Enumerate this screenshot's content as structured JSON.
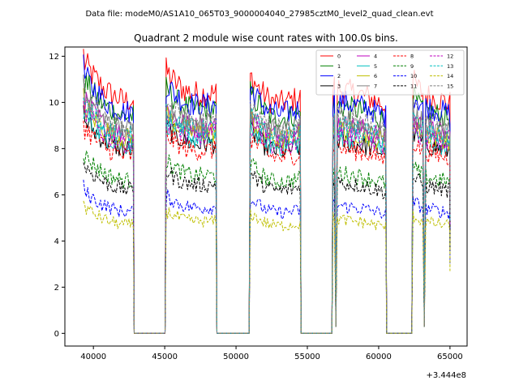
{
  "chart_data": {
    "type": "line",
    "suptitle": "Data file: modeM0/AS1A10_065T03_9000004040_27985cztM0_level2_quad_clean.evt",
    "title": "Quadrant 2 module wise count rates with 100.0s bins.",
    "xlabel": "",
    "ylabel": "",
    "x_offset_label": "+3.444e8",
    "xlim": [
      38000,
      66200
    ],
    "ylim": [
      -0.55,
      12.4
    ],
    "x_ticks": [
      40000,
      45000,
      50000,
      55000,
      60000,
      65000
    ],
    "x_tick_labels": [
      "40000",
      "45000",
      "50000",
      "55000",
      "60000",
      "65000"
    ],
    "y_ticks": [
      0,
      2,
      4,
      6,
      8,
      10,
      12
    ],
    "y_tick_labels": [
      "0",
      "2",
      "4",
      "6",
      "8",
      "10",
      "12"
    ],
    "segments": [
      {
        "start": 39300,
        "end": 42800,
        "trend": [
          1.12,
          1.06,
          1.01,
          0.98,
          0.96,
          0.96
        ]
      },
      {
        "start": 45100,
        "end": 48600,
        "trend": [
          1.08,
          1.03,
          1.0,
          0.99,
          0.99,
          0.99
        ]
      },
      {
        "start": 51000,
        "end": 54500,
        "trend": [
          1.06,
          1.0,
          0.96,
          0.95,
          0.96,
          0.97
        ]
      },
      {
        "start": 56800,
        "end": 60500,
        "trend": [
          1.02,
          1.0,
          0.99,
          0.98,
          0.96,
          0.94
        ]
      },
      {
        "start": 62400,
        "end": 65000,
        "trend": [
          1.04,
          1.0,
          0.98,
          0.97,
          0.96,
          0.95
        ]
      }
    ],
    "gaps": [
      [
        42800,
        45100
      ],
      [
        48600,
        51000
      ],
      [
        54500,
        56800
      ],
      [
        60500,
        62400
      ]
    ],
    "dropouts": [
      57000,
      63200
    ],
    "series": [
      {
        "name": "0",
        "color": "#ff0000",
        "dash": "solid",
        "level": 10.5
      },
      {
        "name": "1",
        "color": "#008000",
        "dash": "solid",
        "level": 9.8
      },
      {
        "name": "2",
        "color": "#0000ff",
        "dash": "solid",
        "level": 10.0
      },
      {
        "name": "3",
        "color": "#000000",
        "dash": "solid",
        "level": 8.3
      },
      {
        "name": "4",
        "color": "#bf00bf",
        "dash": "solid",
        "level": 9.0
      },
      {
        "name": "5",
        "color": "#00bfbf",
        "dash": "solid",
        "level": 8.5
      },
      {
        "name": "6",
        "color": "#bfbf00",
        "dash": "solid",
        "level": 8.8
      },
      {
        "name": "7",
        "color": "#808080",
        "dash": "solid",
        "level": 9.2
      },
      {
        "name": "8",
        "color": "#ff0000",
        "dash": "dashed",
        "level": 8.0
      },
      {
        "name": "9",
        "color": "#008000",
        "dash": "dashed",
        "level": 6.9
      },
      {
        "name": "10",
        "color": "#0000ff",
        "dash": "dashed",
        "level": 5.5
      },
      {
        "name": "11",
        "color": "#000000",
        "dash": "dashed",
        "level": 6.5
      },
      {
        "name": "12",
        "color": "#bf00bf",
        "dash": "dashed",
        "level": 8.6
      },
      {
        "name": "13",
        "color": "#00bfbf",
        "dash": "dashed",
        "level": 8.9
      },
      {
        "name": "14",
        "color": "#bfbf00",
        "dash": "dashed",
        "level": 4.9
      },
      {
        "name": "15",
        "color": "#808080",
        "dash": "dashed",
        "level": 9.3
      }
    ]
  }
}
